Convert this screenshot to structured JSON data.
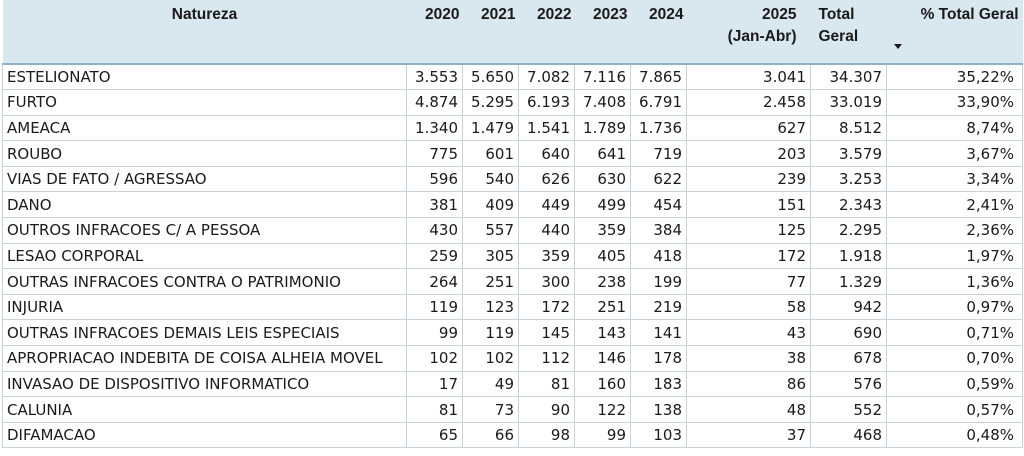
{
  "table": {
    "headers": {
      "natureza": "Natureza",
      "y2020": "2020",
      "y2021": "2021",
      "y2022": "2022",
      "y2023": "2023",
      "y2024": "2024",
      "y2025_line1": "2025",
      "y2025_line2": "(Jan-Abr)",
      "total_line1": "Total",
      "total_line2": "Geral",
      "pct": "% Total Geral"
    },
    "rows": [
      [
        "ESTELIONATO",
        "3.553",
        "5.650",
        "7.082",
        "7.116",
        "7.865",
        "3.041",
        "34.307",
        "35,22%"
      ],
      [
        "FURTO",
        "4.874",
        "5.295",
        "6.193",
        "7.408",
        "6.791",
        "2.458",
        "33.019",
        "33,90%"
      ],
      [
        "AMEACA",
        "1.340",
        "1.479",
        "1.541",
        "1.789",
        "1.736",
        "627",
        "8.512",
        "8,74%"
      ],
      [
        "ROUBO",
        "775",
        "601",
        "640",
        "641",
        "719",
        "203",
        "3.579",
        "3,67%"
      ],
      [
        "VIAS DE FATO / AGRESSAO",
        "596",
        "540",
        "626",
        "630",
        "622",
        "239",
        "3.253",
        "3,34%"
      ],
      [
        "DANO",
        "381",
        "409",
        "449",
        "499",
        "454",
        "151",
        "2.343",
        "2,41%"
      ],
      [
        "OUTROS INFRACOES C/ A PESSOA",
        "430",
        "557",
        "440",
        "359",
        "384",
        "125",
        "2.295",
        "2,36%"
      ],
      [
        "LESAO CORPORAL",
        "259",
        "305",
        "359",
        "405",
        "418",
        "172",
        "1.918",
        "1,97%"
      ],
      [
        "OUTRAS INFRACOES CONTRA O PATRIMONIO",
        "264",
        "251",
        "300",
        "238",
        "199",
        "77",
        "1.329",
        "1,36%"
      ],
      [
        "INJURIA",
        "119",
        "123",
        "172",
        "251",
        "219",
        "58",
        "942",
        "0,97%"
      ],
      [
        "OUTRAS INFRACOES DEMAIS LEIS ESPECIAIS",
        "99",
        "119",
        "145",
        "143",
        "141",
        "43",
        "690",
        "0,71%"
      ],
      [
        "APROPRIACAO INDEBITA DE COISA ALHEIA MOVEL",
        "102",
        "102",
        "112",
        "146",
        "178",
        "38",
        "678",
        "0,70%"
      ],
      [
        "INVASAO DE DISPOSITIVO INFORMATICO",
        "17",
        "49",
        "81",
        "160",
        "183",
        "86",
        "576",
        "0,59%"
      ],
      [
        "CALUNIA",
        "81",
        "73",
        "90",
        "122",
        "138",
        "48",
        "552",
        "0,57%"
      ],
      [
        "DIFAMACAO",
        "65",
        "66",
        "98",
        "99",
        "103",
        "37",
        "468",
        "0,48%"
      ]
    ],
    "sort": {
      "column": "pct",
      "direction": "descending",
      "icon": "sort-down-icon"
    }
  }
}
